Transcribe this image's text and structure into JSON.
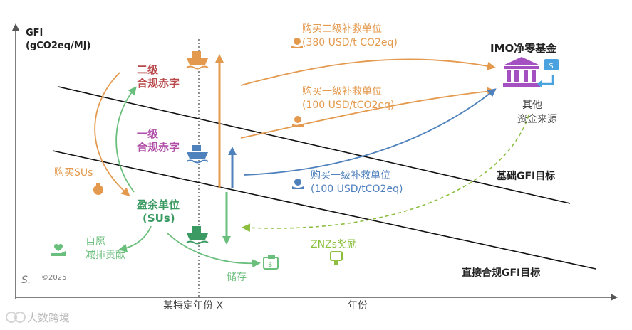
{
  "axis": {
    "y_label_line1": "GFI",
    "y_label_line2": "(gCO2eq/MJ)",
    "x_label": "年份",
    "x_marker_label": "某特定年份 X"
  },
  "targets": {
    "base": "基础GFI目标",
    "direct": "直接合规GFI目标"
  },
  "deficits": {
    "tier2_line1": "二级",
    "tier2_line2": "合规赤字",
    "tier1_line1": "一级",
    "tier1_line2": "合规赤字"
  },
  "surplus": {
    "line1": "盈余单位",
    "line2": "(SUs)"
  },
  "flows": {
    "buy_tier2_line1": "购买二级补救单位",
    "buy_tier2_line2": "(380 USD/t CO2eq)",
    "buy_tier1_top_line1": "购买一级补救单位",
    "buy_tier1_top_line2": "(100 USD/tCO2eq)",
    "buy_tier1_line1": "购买一级补救单位",
    "buy_tier1_line2": "(100 USD/tCO2eq)",
    "buy_sus": "购买SUs",
    "voluntary_line1": "自愿",
    "voluntary_line2": "减排贡献",
    "store": "储存",
    "znz_reward": "ZNZs奖励"
  },
  "fund": {
    "title": "IMO净零基金",
    "other_line1": "其他",
    "other_line2": "资金来源"
  },
  "footer": {
    "copyright": "©2025",
    "watermark": "大数跨境"
  },
  "colors": {
    "orange": "#e49a4e",
    "red": "#b8484a",
    "purple": "#b04fa8",
    "green": "#3a9a61",
    "light_green": "#6bbf7d",
    "blue": "#4f81bd",
    "yellow_green": "#8cbf3e"
  },
  "icons": [
    "ship-icon",
    "money-hand-icon",
    "bank-icon",
    "exchange-icon",
    "money-bag-icon",
    "heart-hand-icon",
    "storage-icon",
    "reward-icon"
  ]
}
